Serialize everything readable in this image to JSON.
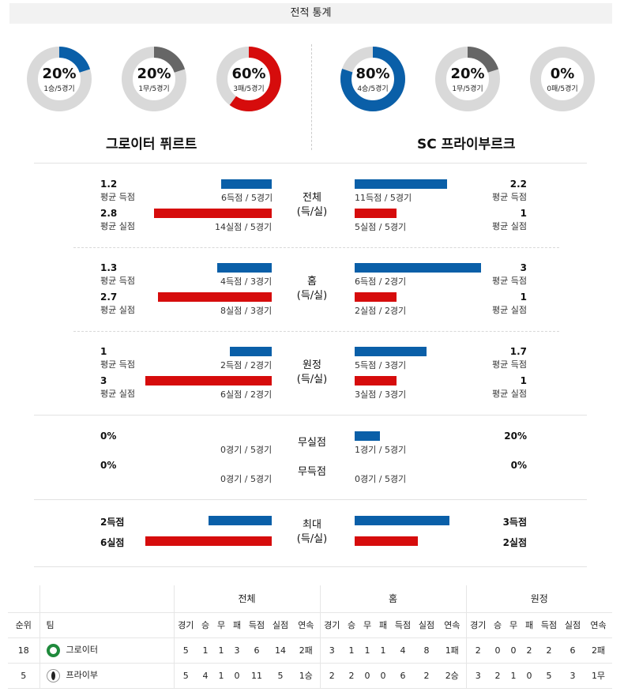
{
  "header": {
    "title": "전적 통계"
  },
  "donuts": [
    {
      "pct": "20%",
      "sub": "1승/5경기",
      "fraction": 0.2,
      "color": "#0a5fa8"
    },
    {
      "pct": "20%",
      "sub": "1무/5경기",
      "fraction": 0.2,
      "color": "#666666"
    },
    {
      "pct": "60%",
      "sub": "3패/5경기",
      "fraction": 0.6,
      "color": "#d60c0c"
    },
    {
      "pct": "80%",
      "sub": "4승/5경기",
      "fraction": 0.8,
      "color": "#0a5fa8"
    },
    {
      "pct": "20%",
      "sub": "1무/5경기",
      "fraction": 0.2,
      "color": "#666666"
    },
    {
      "pct": "0%",
      "sub": "0패/5경기",
      "fraction": 0.0,
      "color": "#d60c0c"
    }
  ],
  "teams": {
    "home": "그로이터 퓌르트",
    "away": "SC 프라이부르크"
  },
  "sections": [
    {
      "label1": "전체",
      "label2": "(득/실)",
      "home_scored": {
        "value": "1.2",
        "label": "평균 득점",
        "detail": "6득점 / 5경기"
      },
      "home_conceded": {
        "value": "2.8",
        "label": "평균 실점",
        "detail": "14실점 / 5경기"
      },
      "away_scored": {
        "value": "2.2",
        "label": "평균 득점",
        "detail": "11득점 / 5경기"
      },
      "away_conceded": {
        "value": "1",
        "label": "평균 실점",
        "detail": "5실점 / 5경기"
      }
    },
    {
      "label1": "홈",
      "label2": "(득/실)",
      "home_scored": {
        "value": "1.3",
        "label": "평균 득점",
        "detail": "4득점 / 3경기"
      },
      "home_conceded": {
        "value": "2.7",
        "label": "평균 실점",
        "detail": "8실점 / 3경기"
      },
      "away_scored": {
        "value": "3",
        "label": "평균 득점",
        "detail": "6득점 / 2경기"
      },
      "away_conceded": {
        "value": "1",
        "label": "평균 실점",
        "detail": "2실점 / 2경기"
      }
    },
    {
      "label1": "원정",
      "label2": "(득/실)",
      "home_scored": {
        "value": "1",
        "label": "평균 득점",
        "detail": "2득점 / 2경기"
      },
      "home_conceded": {
        "value": "3",
        "label": "평균 실점",
        "detail": "6실점 / 2경기"
      },
      "away_scored": {
        "value": "1.7",
        "label": "평균 득점",
        "detail": "5득점 / 3경기"
      },
      "away_conceded": {
        "value": "1",
        "label": "평균 실점",
        "detail": "3실점 / 3경기"
      }
    }
  ],
  "clean": {
    "label1": "무실점",
    "label2": "무득점",
    "home_clean": {
      "value": "0%",
      "detail": "0경기 / 5경기"
    },
    "away_clean": {
      "value": "20%",
      "detail": "1경기 / 5경기"
    },
    "home_noscore": {
      "value": "0%",
      "detail": "0경기 / 5경기"
    },
    "away_noscore": {
      "value": "0%",
      "detail": "0경기 / 5경기"
    }
  },
  "max": {
    "label1": "최대",
    "label2": "(득/실)",
    "home_scored": "2득점",
    "home_conceded": "6실점",
    "away_scored": "3득점",
    "away_conceded": "2실점"
  },
  "standings": {
    "groups": [
      "전체",
      "홈",
      "원정"
    ],
    "rank_header": "순위",
    "team_header": "팀",
    "cols": [
      "경기",
      "승",
      "무",
      "패",
      "득점",
      "실점",
      "연속"
    ],
    "rows": [
      {
        "rank": "18",
        "team": "그로이터",
        "logo": "greuther-logo",
        "all": [
          "5",
          "1",
          "1",
          "3",
          "6",
          "14",
          "2패"
        ],
        "home": [
          "3",
          "1",
          "1",
          "1",
          "4",
          "8",
          "1패"
        ],
        "away": [
          "2",
          "0",
          "0",
          "2",
          "2",
          "6",
          "2패"
        ]
      },
      {
        "rank": "5",
        "team": "프라이부",
        "logo": "freiburg-logo",
        "all": [
          "5",
          "4",
          "1",
          "0",
          "11",
          "5",
          "1승"
        ],
        "home": [
          "2",
          "2",
          "0",
          "0",
          "6",
          "2",
          "2승"
        ],
        "away": [
          "3",
          "2",
          "1",
          "0",
          "5",
          "3",
          "1무"
        ]
      }
    ]
  }
}
